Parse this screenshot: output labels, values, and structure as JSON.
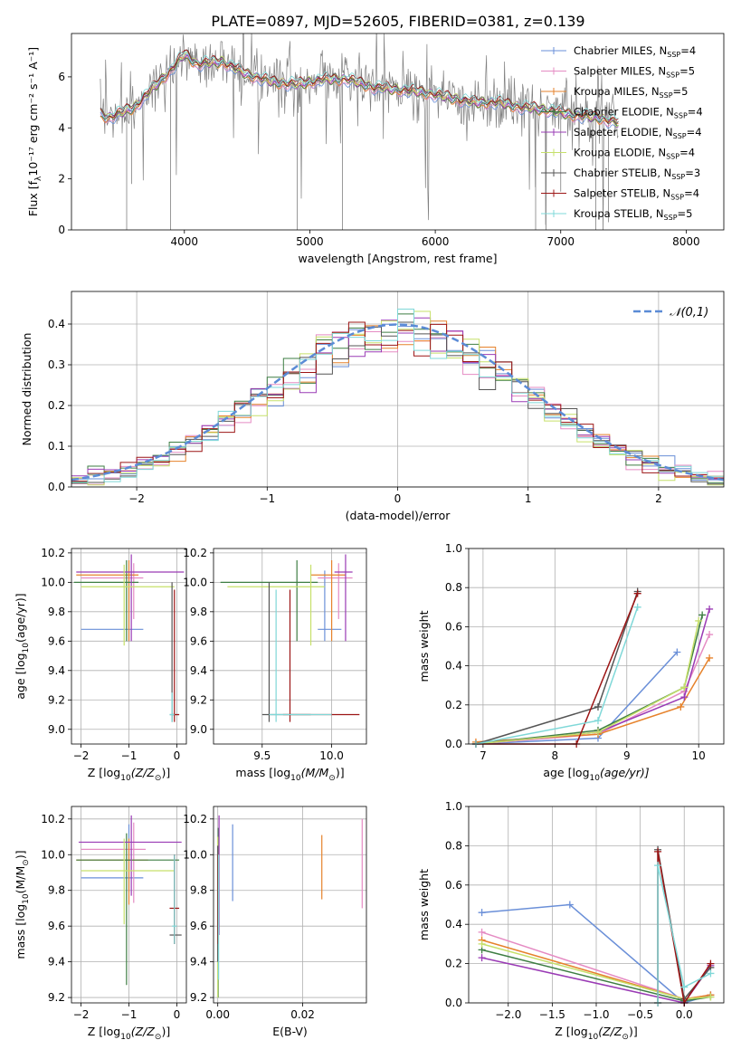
{
  "figure_title": "PLATE=0897, MJD=52605, FIBERID=0381, z=0.139",
  "colors": [
    "#6a8fd8",
    "#e58bc3",
    "#e6822b",
    "#3e7e43",
    "#9a3bb5",
    "#c6e06a",
    "#555555",
    "#9c1515",
    "#7fd8d8"
  ],
  "models": [
    {
      "main": "Chabrier MILES, N",
      "sub": "SSP",
      "tail": "=4"
    },
    {
      "main": "Salpeter MILES, N",
      "sub": "SSP",
      "tail": "=5"
    },
    {
      "main": "Kroupa MILES, N",
      "sub": "SSP",
      "tail": "=5"
    },
    {
      "main": "Chabrier ELODIE, N",
      "sub": "SSP",
      "tail": "=4"
    },
    {
      "main": "Salpeter ELODIE, N",
      "sub": "SSP",
      "tail": "=4"
    },
    {
      "main": "Kroupa ELODIE, N",
      "sub": "SSP",
      "tail": "=4"
    },
    {
      "main": "Chabrier STELIB, N",
      "sub": "SSP",
      "tail": "=3"
    },
    {
      "main": "Salpeter STELIB, N",
      "sub": "SSP",
      "tail": "=4"
    },
    {
      "main": "Kroupa STELIB, N",
      "sub": "SSP",
      "tail": "=5"
    }
  ],
  "chart_data": [
    {
      "id": "spectrum",
      "type": "line",
      "xlabel": "wavelength [Angstrom, rest frame]",
      "ylabel_main": "Flux [f",
      "ylabel_sub": "λ",
      "ylabel_tail": "10⁻¹⁷ erg cm⁻² s⁻¹ A⁻¹]",
      "xlim": [
        3100,
        8300
      ],
      "ylim": [
        0,
        7.7
      ],
      "xticks": [
        4000,
        5000,
        6000,
        7000,
        8000
      ],
      "yticks": [
        0,
        2,
        4,
        6
      ],
      "grid": false,
      "legend": "top-right",
      "continuum": {
        "x": [
          3300,
          3400,
          3500,
          3600,
          3700,
          3800,
          3900,
          4000,
          4100,
          4300,
          4500,
          4700,
          4900,
          5100,
          5300,
          5500,
          5700,
          5900,
          6100,
          6300,
          6500,
          6700,
          6900,
          7100,
          7300,
          7450
        ],
        "y": [
          4.6,
          4.4,
          4.6,
          4.8,
          5.3,
          5.8,
          6.3,
          6.9,
          6.5,
          6.6,
          6.1,
          5.8,
          5.7,
          5.9,
          5.9,
          5.6,
          5.5,
          5.4,
          5.2,
          5.0,
          5.0,
          4.8,
          4.7,
          4.5,
          4.4,
          4.2
        ]
      }
    },
    {
      "id": "residuals",
      "type": "histogram",
      "xlabel": "(data-model)/error",
      "ylabel": "Normed distribution",
      "xlim": [
        -2.5,
        2.5
      ],
      "ylim": [
        0,
        0.48
      ],
      "xticks": [
        -2,
        -1,
        0,
        1,
        2
      ],
      "yticks": [
        0.0,
        0.1,
        0.2,
        0.3,
        0.4
      ],
      "grid": true,
      "legend": "top-right",
      "normal_label": "𝒩(0,1)"
    },
    {
      "id": "age_vs_Z",
      "type": "errorbar",
      "xlabel_main": "Z [log",
      "xlabel_sub": "10",
      "xlabel_tail": "(Z/Z",
      "xlabel_end": ")]",
      "ylabel_main": "age  [log",
      "ylabel_sub": "10",
      "ylabel_tail": "(age/yr)]",
      "xlim": [
        -2.2,
        0.2
      ],
      "ylim": [
        8.9,
        10.23
      ],
      "xticks": [
        -2,
        -1,
        0
      ],
      "yticks": [
        9.0,
        9.2,
        9.4,
        9.6,
        9.8,
        10.0,
        10.2
      ],
      "grid": true,
      "points": [
        {
          "x": -1.0,
          "y": 9.68,
          "xerr": [
            1.0,
            0.3
          ],
          "yerr": [
            0.08,
            0.4
          ]
        },
        {
          "x": -0.9,
          "y": 10.03,
          "xerr": [
            1.1,
            0.2
          ],
          "yerr": [
            0.28,
            0.1
          ]
        },
        {
          "x": -1.0,
          "y": 10.05,
          "xerr": [
            1.1,
            0.2
          ],
          "yerr": [
            0.45,
            0.1
          ]
        },
        {
          "x": -1.05,
          "y": 10.0,
          "xerr": [
            1.1,
            0.25
          ],
          "yerr": [
            0.4,
            0.15
          ]
        },
        {
          "x": -0.95,
          "y": 10.07,
          "xerr": [
            1.15,
            1.1
          ],
          "yerr": [
            0.47,
            0.12
          ]
        },
        {
          "x": -1.1,
          "y": 9.97,
          "xerr": [
            0.9,
            1.05
          ],
          "yerr": [
            0.4,
            0.15
          ]
        },
        {
          "x": -0.1,
          "y": 9.1,
          "xerr": [
            0.05,
            0.15
          ],
          "yerr": [
            0.05,
            0.9
          ]
        },
        {
          "x": -0.05,
          "y": 9.1,
          "xerr": [
            0.05,
            0.1
          ],
          "yerr": [
            0.05,
            0.85
          ]
        },
        {
          "x": -0.1,
          "y": 9.1,
          "xerr": [
            0.05,
            0.05
          ],
          "yerr": [
            0.05,
            0.15
          ]
        }
      ]
    },
    {
      "id": "age_vs_mass",
      "type": "errorbar",
      "xlabel_main": "mass [log",
      "xlabel_sub": "10",
      "xlabel_tail": "(M/M",
      "xlabel_end": ")]",
      "xlim": [
        9.15,
        10.25
      ],
      "ylim": [
        8.9,
        10.23
      ],
      "xticks": [
        9.5,
        10.0
      ],
      "yticks": [
        9.0,
        9.2,
        9.4,
        9.6,
        9.8,
        10.0,
        10.2
      ],
      "grid": true,
      "points": [
        {
          "x": 9.95,
          "y": 9.68,
          "xerr": [
            0.05,
            0.12
          ],
          "yerr": [
            0.08,
            0.4
          ]
        },
        {
          "x": 10.05,
          "y": 10.03,
          "xerr": [
            0.15,
            0.1
          ],
          "yerr": [
            0.28,
            0.1
          ]
        },
        {
          "x": 10.0,
          "y": 10.05,
          "xerr": [
            0.15,
            0.1
          ],
          "yerr": [
            0.45,
            0.1
          ]
        },
        {
          "x": 9.75,
          "y": 10.0,
          "xerr": [
            0.55,
            0.15
          ],
          "yerr": [
            0.4,
            0.15
          ]
        },
        {
          "x": 10.1,
          "y": 10.07,
          "xerr": [
            0.08,
            0.05
          ],
          "yerr": [
            0.47,
            0.12
          ]
        },
        {
          "x": 9.85,
          "y": 9.97,
          "xerr": [
            0.6,
            0.1
          ],
          "yerr": [
            0.4,
            0.15
          ]
        },
        {
          "x": 9.55,
          "y": 9.1,
          "xerr": [
            0.05,
            0.3
          ],
          "yerr": [
            0.05,
            0.9
          ]
        },
        {
          "x": 9.7,
          "y": 9.1,
          "xerr": [
            0.05,
            0.5
          ],
          "yerr": [
            0.05,
            0.85
          ]
        },
        {
          "x": 9.6,
          "y": 9.1,
          "xerr": [
            0.05,
            0.4
          ],
          "yerr": [
            0.05,
            0.85
          ]
        }
      ]
    },
    {
      "id": "weight_vs_age",
      "type": "line",
      "xlabel_main": "age  [log",
      "xlabel_sub": "10",
      "xlabel_tail": "(age/yr)]",
      "ylabel": "mass weight",
      "xlim": [
        6.8,
        10.35
      ],
      "ylim": [
        0,
        1.0
      ],
      "xticks": [
        7,
        8,
        9,
        10
      ],
      "yticks": [
        0.0,
        0.2,
        0.4,
        0.6,
        0.8,
        1.0
      ],
      "grid": true,
      "series": [
        {
          "x": [
            6.9,
            8.6,
            9.7
          ],
          "y": [
            0.0,
            0.03,
            0.47
          ]
        },
        {
          "x": [
            6.9,
            8.6,
            9.8,
            10.15
          ],
          "y": [
            0.0,
            0.05,
            0.27,
            0.56
          ]
        },
        {
          "x": [
            6.9,
            8.6,
            9.75,
            10.15
          ],
          "y": [
            0.01,
            0.05,
            0.19,
            0.44
          ]
        },
        {
          "x": [
            6.9,
            8.6,
            9.8,
            10.05
          ],
          "y": [
            0.0,
            0.07,
            0.29,
            0.66
          ]
        },
        {
          "x": [
            6.9,
            8.6,
            9.8,
            10.15
          ],
          "y": [
            0.0,
            0.06,
            0.24,
            0.69
          ]
        },
        {
          "x": [
            6.9,
            8.6,
            9.8,
            10.0
          ],
          "y": [
            0.0,
            0.06,
            0.29,
            0.63
          ]
        },
        {
          "x": [
            6.9,
            8.6,
            9.15
          ],
          "y": [
            0.0,
            0.19,
            0.78
          ]
        },
        {
          "x": [
            6.9,
            8.3,
            9.15
          ],
          "y": [
            0.0,
            0.0,
            0.77
          ]
        },
        {
          "x": [
            6.9,
            8.6,
            9.15
          ],
          "y": [
            0.0,
            0.12,
            0.7
          ]
        }
      ]
    },
    {
      "id": "mass_vs_Z",
      "type": "errorbar",
      "xlabel_main": "Z [log",
      "xlabel_sub": "10",
      "xlabel_tail": "(Z/Z",
      "xlabel_end": ")]",
      "ylabel_main": "mass [log",
      "ylabel_sub": "10",
      "ylabel_tail": "(M/M",
      "ylabel_end": ")]",
      "xlim": [
        -2.2,
        0.2
      ],
      "ylim": [
        9.17,
        10.27
      ],
      "xticks": [
        -2,
        -1,
        0
      ],
      "yticks": [
        9.2,
        9.4,
        9.6,
        9.8,
        10.0,
        10.2
      ],
      "grid": true,
      "points": [
        {
          "x": -1.0,
          "y": 9.87,
          "xerr": [
            1.0,
            0.3
          ],
          "yerr": [
            0.08,
            0.3
          ]
        },
        {
          "x": -0.9,
          "y": 10.03,
          "xerr": [
            1.1,
            0.25
          ],
          "yerr": [
            0.3,
            0.15
          ]
        },
        {
          "x": -1.0,
          "y": 9.97,
          "xerr": [
            1.1,
            0.4
          ],
          "yerr": [
            0.25,
            0.12
          ]
        },
        {
          "x": -1.05,
          "y": 9.97,
          "xerr": [
            1.05,
            1.1
          ],
          "yerr": [
            0.7,
            0.15
          ]
        },
        {
          "x": -0.95,
          "y": 10.07,
          "xerr": [
            1.1,
            1.05
          ],
          "yerr": [
            0.3,
            0.15
          ]
        },
        {
          "x": -1.1,
          "y": 9.91,
          "xerr": [
            0.9,
            1.05
          ],
          "yerr": [
            0.3,
            0.18
          ]
        },
        {
          "x": -0.05,
          "y": 9.55,
          "xerr": [
            0.1,
            0.15
          ],
          "yerr": [
            0.05,
            0.45
          ]
        },
        {
          "x": -0.05,
          "y": 9.7,
          "xerr": [
            0.1,
            0.1
          ],
          "yerr": [
            0.2,
            0.3
          ]
        },
        {
          "x": -0.05,
          "y": 9.6,
          "xerr": [
            0.05,
            0.05
          ],
          "yerr": [
            0.1,
            0.4
          ]
        }
      ]
    },
    {
      "id": "mass_vs_ebv",
      "type": "errorbar",
      "xlabel": "E(B-V)",
      "xlim": [
        -0.001,
        0.035
      ],
      "ylim": [
        9.17,
        10.27
      ],
      "xticks": [
        0.0,
        0.02
      ],
      "yticks": [
        9.2,
        9.4,
        9.6,
        9.8,
        10.0,
        10.2
      ],
      "grid": true,
      "points": [
        {
          "x": 0.0035,
          "y": 9.96,
          "xerr": [
            0,
            0
          ],
          "yerr": [
            0.22,
            0.21
          ]
        },
        {
          "x": 0.034,
          "y": 9.96,
          "xerr": [
            0,
            0
          ],
          "yerr": [
            0.26,
            0.24
          ]
        },
        {
          "x": 0.0245,
          "y": 9.93,
          "xerr": [
            0,
            0
          ],
          "yerr": [
            0.18,
            0.18
          ]
        },
        {
          "x": 0.0001,
          "y": 9.95,
          "xerr": [
            0,
            0
          ],
          "yerr": [
            0.75,
            0.2
          ]
        },
        {
          "x": 0.0003,
          "y": 10.05,
          "xerr": [
            0,
            0
          ],
          "yerr": [
            0.5,
            0.17
          ]
        },
        {
          "x": 0.0,
          "y": 9.8,
          "xerr": [
            0,
            0
          ],
          "yerr": [
            0.6,
            0.3
          ]
        },
        {
          "x": 0.0,
          "y": 9.6,
          "xerr": [
            0,
            0
          ],
          "yerr": [
            0.2,
            0.45
          ]
        },
        {
          "x": 0.0001,
          "y": 9.7,
          "xerr": [
            0,
            0
          ],
          "yerr": [
            0.2,
            0.3
          ]
        },
        {
          "x": 0.0002,
          "y": 9.6,
          "xerr": [
            0,
            0
          ],
          "yerr": [
            0.3,
            0.4
          ]
        }
      ]
    },
    {
      "id": "weight_vs_Z",
      "type": "line",
      "xlabel_main": "Z [log",
      "xlabel_sub": "10",
      "xlabel_tail": "(Z/Z",
      "xlabel_end": ")]",
      "ylabel": "mass weight",
      "xlim": [
        -2.45,
        0.45
      ],
      "ylim": [
        0,
        1.0
      ],
      "xticks": [
        -2.0,
        -1.5,
        -1.0,
        -0.5,
        0.0
      ],
      "yticks": [
        0.0,
        0.2,
        0.4,
        0.6,
        0.8,
        1.0
      ],
      "grid": true,
      "series": [
        {
          "x": [
            -2.3,
            -1.3,
            0.0,
            0.3
          ],
          "y": [
            0.46,
            0.5,
            0.0,
            0.04
          ]
        },
        {
          "x": [
            -2.3,
            0.0,
            0.3
          ],
          "y": [
            0.36,
            0.02,
            0.04
          ]
        },
        {
          "x": [
            -2.3,
            0.0,
            0.3
          ],
          "y": [
            0.32,
            0.02,
            0.04
          ]
        },
        {
          "x": [
            -2.3,
            0.0,
            0.3
          ],
          "y": [
            0.27,
            0.01,
            0.03
          ]
        },
        {
          "x": [
            -2.3,
            0.0,
            0.3
          ],
          "y": [
            0.23,
            0.0,
            0.19
          ]
        },
        {
          "x": [
            -2.3,
            0.0,
            0.3
          ],
          "y": [
            0.3,
            0.02,
            0.03
          ]
        },
        {
          "x": [
            -0.3,
            -0.3,
            0.0,
            0.3
          ],
          "y": [
            0.0,
            0.78,
            0.02,
            0.18
          ]
        },
        {
          "x": [
            -0.3,
            -0.3,
            0.0,
            0.3
          ],
          "y": [
            0.0,
            0.77,
            0.0,
            0.2
          ]
        },
        {
          "x": [
            -0.3,
            -0.3,
            0.0,
            0.3
          ],
          "y": [
            0.0,
            0.7,
            0.08,
            0.15
          ]
        }
      ]
    }
  ]
}
